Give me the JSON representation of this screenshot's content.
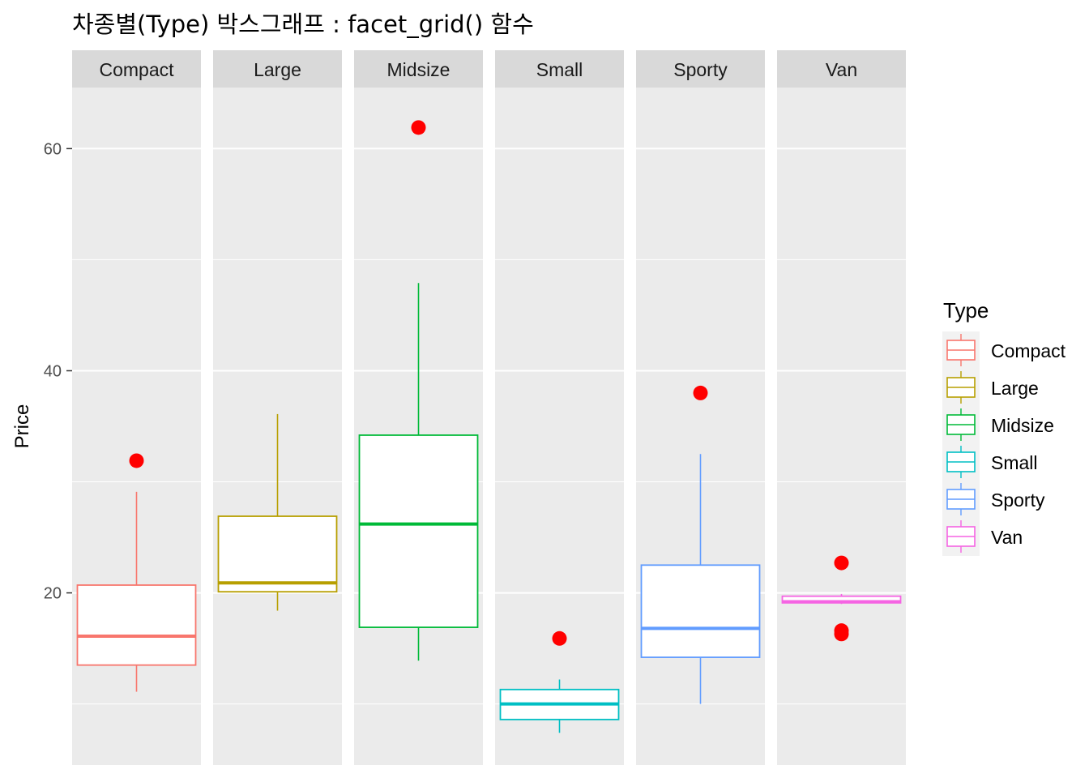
{
  "chart_data": {
    "type": "boxplot",
    "title": "차종별(Type) 박스그래프 : facet_grid() 함수",
    "xlabel": "",
    "ylabel": "Price",
    "ylim": [
      4.5,
      65.5
    ],
    "y_ticks": [
      20,
      40,
      60
    ],
    "y_minor_ticks": [
      10,
      30,
      50
    ],
    "grid": true,
    "legend": {
      "title": "Type",
      "position": "right"
    },
    "outlier_color": "#ff0000",
    "facets": [
      {
        "name": "Compact",
        "color": "#f8766d",
        "min": 11.1,
        "q1": 13.5,
        "median": 16.1,
        "q3": 20.7,
        "max": 29.1,
        "outliers": [
          31.9
        ]
      },
      {
        "name": "Large",
        "color": "#b79f00",
        "min": 18.4,
        "q1": 20.1,
        "median": 20.9,
        "q3": 26.9,
        "max": 36.1,
        "outliers": []
      },
      {
        "name": "Midsize",
        "color": "#00ba38",
        "min": 13.9,
        "q1": 16.9,
        "median": 26.2,
        "q3": 34.2,
        "max": 47.9,
        "outliers": [
          61.9
        ]
      },
      {
        "name": "Small",
        "color": "#00bfc4",
        "min": 7.4,
        "q1": 8.6,
        "median": 10.0,
        "q3": 11.3,
        "max": 12.2,
        "outliers": [
          15.9
        ]
      },
      {
        "name": "Sporty",
        "color": "#619cff",
        "min": 10.0,
        "q1": 14.2,
        "median": 16.8,
        "q3": 22.5,
        "max": 32.5,
        "outliers": [
          38.0
        ]
      },
      {
        "name": "Van",
        "color": "#f564e3",
        "min": 19.0,
        "q1": 19.1,
        "median": 19.2,
        "q3": 19.7,
        "max": 19.9,
        "outliers": [
          22.7,
          16.6,
          16.3
        ]
      }
    ]
  }
}
